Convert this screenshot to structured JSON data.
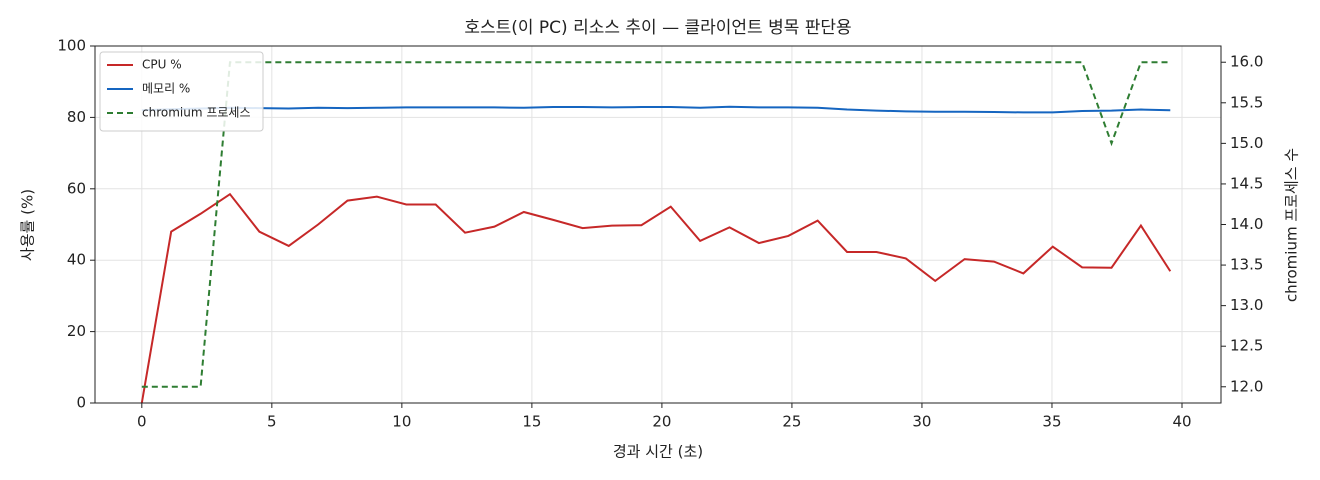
{
  "chart_data": {
    "type": "line",
    "title": "호스트(이 PC) 리소스 추이 — 클라이언트 병목 판단용",
    "xlabel": "경과 시간 (초)",
    "ylabel": "사용률 (%)",
    "y2label": "chromium 프로세스 수",
    "x": [
      0,
      1.13,
      2.26,
      3.39,
      4.52,
      5.65,
      6.78,
      7.91,
      9.04,
      10.17,
      11.3,
      12.43,
      13.56,
      14.69,
      15.82,
      16.95,
      18.08,
      19.21,
      20.34,
      21.47,
      22.6,
      23.73,
      24.86,
      25.99,
      27.12,
      28.25,
      29.38,
      30.51,
      31.64,
      32.77,
      33.9,
      35.03,
      36.16,
      37.29,
      38.42,
      39.55
    ],
    "series": [
      {
        "name": "CPU %",
        "color": "#c62828",
        "dash": false,
        "values": [
          0,
          48,
          53,
          58.5,
          48,
          44,
          50,
          56.7,
          57.8,
          55.6,
          55.6,
          47.7,
          49.4,
          53.5,
          51.3,
          49,
          49.7,
          49.8,
          55,
          45.4,
          49.2,
          44.8,
          46.8,
          51.1,
          42.3,
          42.3,
          40.5,
          34.2,
          40.3,
          39.6,
          36.3,
          43.8,
          38,
          37.9,
          49.7,
          36.9
        ]
      },
      {
        "name": "메모리 %",
        "color": "#1565c0",
        "dash": false,
        "values": [
          82.0,
          82.3,
          82.5,
          82.7,
          82.6,
          82.5,
          82.7,
          82.6,
          82.7,
          82.8,
          82.8,
          82.8,
          82.8,
          82.7,
          82.9,
          82.9,
          82.8,
          82.9,
          82.9,
          82.7,
          83.0,
          82.8,
          82.8,
          82.7,
          82.2,
          81.9,
          81.7,
          81.6,
          81.6,
          81.5,
          81.4,
          81.4,
          81.8,
          81.9,
          82.2,
          82.0
        ]
      },
      {
        "name": "chromium 프로세스",
        "color": "#2e7d32",
        "dash": true,
        "axis": "y2",
        "values": [
          12,
          12,
          12,
          16,
          16,
          16,
          16,
          16,
          16,
          16,
          16,
          16,
          16,
          16,
          16,
          16,
          16,
          16,
          16,
          16,
          16,
          16,
          16,
          16,
          16,
          16,
          16,
          16,
          16,
          16,
          16,
          16,
          16,
          15,
          16,
          16
        ]
      }
    ],
    "xlim": [
      -1.8,
      41.5
    ],
    "xticks": [
      0,
      5,
      10,
      15,
      20,
      25,
      30,
      35,
      40
    ],
    "ylim": [
      0,
      100
    ],
    "yticks": [
      0,
      20,
      40,
      60,
      80,
      100
    ],
    "y2lim": [
      11.8,
      16.2
    ],
    "y2ticks": [
      {
        "value": 12,
        "label": "12.0"
      },
      {
        "value": 12.5,
        "label": "12.5"
      },
      {
        "value": 13,
        "label": "13.0"
      },
      {
        "value": 13.5,
        "label": "13.5"
      },
      {
        "value": 14,
        "label": "14.0"
      },
      {
        "value": 14.5,
        "label": "14.5"
      },
      {
        "value": 15,
        "label": "15.0"
      },
      {
        "value": 15.5,
        "label": "15.5"
      },
      {
        "value": 16,
        "label": "16.0"
      }
    ],
    "grid": true,
    "legend": "upper-left"
  }
}
